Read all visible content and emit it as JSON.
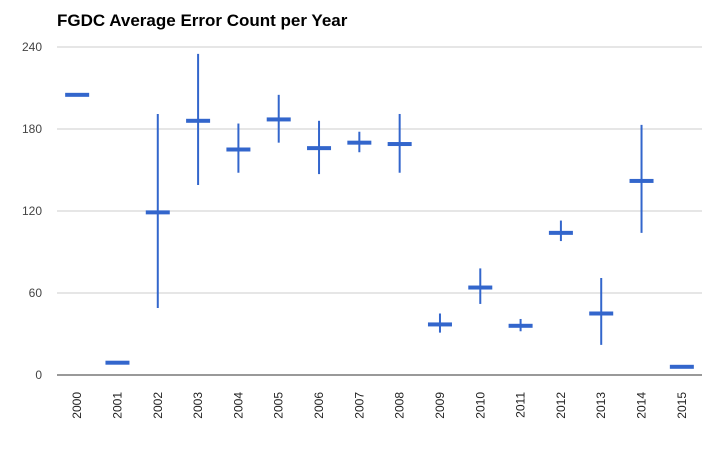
{
  "chart_data": {
    "type": "candlestick",
    "title": "FGDC Average Error Count per Year",
    "xlabel": "",
    "ylabel": "",
    "ylim": [
      0,
      240
    ],
    "yticks": [
      "0",
      "60",
      "120",
      "180",
      "240"
    ],
    "grid": true,
    "legend": "none",
    "color": "#3366cc",
    "gridColor": "#cccccc",
    "categories": [
      "2000",
      "2001",
      "2002",
      "2003",
      "2004",
      "2005",
      "2006",
      "2007",
      "2008",
      "2009",
      "2010",
      "2011",
      "2012",
      "2013",
      "2014",
      "2015"
    ],
    "series": [
      {
        "value": 205,
        "low": 205,
        "high": 205
      },
      {
        "value": 9,
        "low": 9,
        "high": 9
      },
      {
        "value": 119,
        "low": 49,
        "high": 191
      },
      {
        "value": 186,
        "low": 139,
        "high": 235
      },
      {
        "value": 165,
        "low": 148,
        "high": 184
      },
      {
        "value": 187,
        "low": 170,
        "high": 205
      },
      {
        "value": 166,
        "low": 147,
        "high": 186
      },
      {
        "value": 170,
        "low": 163,
        "high": 178
      },
      {
        "value": 169,
        "low": 148,
        "high": 191
      },
      {
        "value": 37,
        "low": 31,
        "high": 45
      },
      {
        "value": 64,
        "low": 52,
        "high": 78
      },
      {
        "value": 36,
        "low": 32,
        "high": 41
      },
      {
        "value": 104,
        "low": 98,
        "high": 113
      },
      {
        "value": 45,
        "low": 22,
        "high": 71
      },
      {
        "value": 142,
        "low": 104,
        "high": 183
      },
      {
        "value": 6,
        "low": 6,
        "high": 6
      }
    ]
  }
}
